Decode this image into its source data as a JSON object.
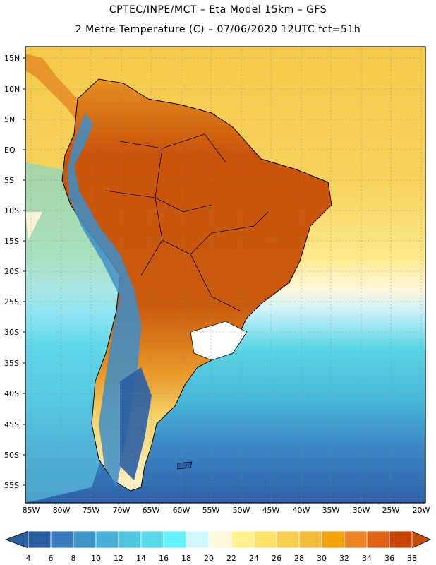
{
  "header": {
    "line1": "CPTEC/INPE/MCT –   Eta Model 15km – GFS",
    "line2": "2 Metre Temperature (C) – 07/06/2020 12UTC fct=51h"
  },
  "map": {
    "lat_labels": [
      "15N",
      "10N",
      "5N",
      "EQ",
      "5S",
      "10S",
      "15S",
      "20S",
      "25S",
      "30S",
      "35S",
      "40S",
      "45S",
      "50S",
      "55S"
    ],
    "lon_labels": [
      "85W",
      "80W",
      "75W",
      "70W",
      "65W",
      "60W",
      "55W",
      "50W",
      "45W",
      "40W",
      "35W",
      "30W",
      "25W",
      "20W"
    ],
    "land_color": "#c14d06"
  },
  "colorbar": {
    "labels": [
      "4",
      "6",
      "8",
      "10",
      "12",
      "14",
      "16",
      "18",
      "20",
      "22",
      "24",
      "26",
      "28",
      "30",
      "32",
      "34",
      "36",
      "38"
    ],
    "colors": [
      "#2a5fa3",
      "#3a7bbf",
      "#3f97c7",
      "#47b0d4",
      "#50c6de",
      "#5bdae8",
      "#63f1fb",
      "#d2f6ff",
      "#fff8dc",
      "#fff28c",
      "#fde36a",
      "#f6ce4f",
      "#f1bc3a",
      "#f3a108",
      "#eb8324",
      "#df6216",
      "#c84404",
      "#c14d06"
    ]
  }
}
